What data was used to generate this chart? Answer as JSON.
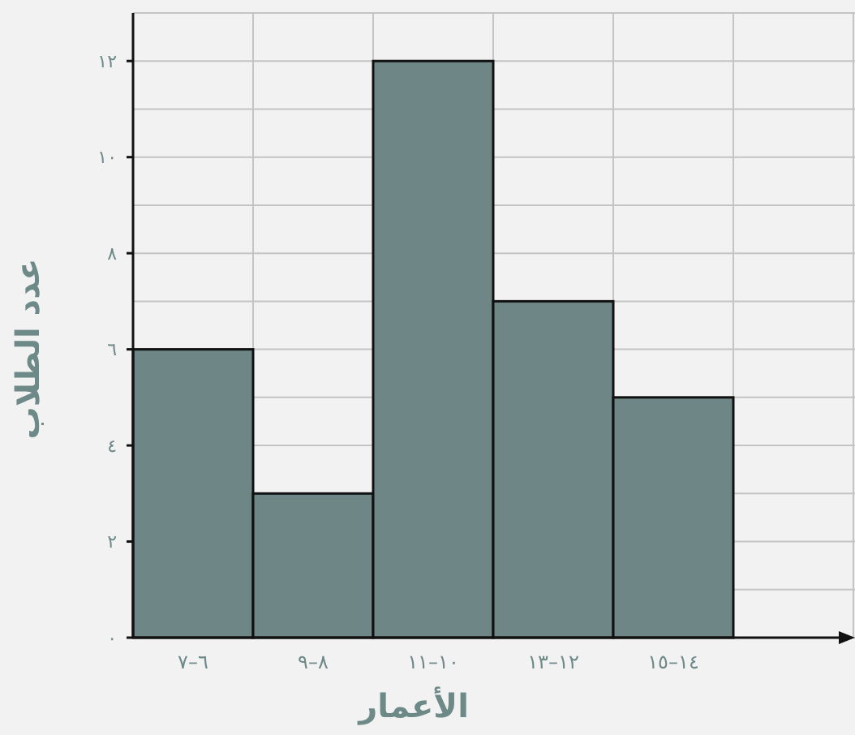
{
  "chart_data": {
    "type": "bar",
    "xlabel": "الأعمار",
    "ylabel": "عدد الطلاب",
    "categories": [
      "٦–٧",
      "٨–٩",
      "١٠–١١",
      "١٢–١٣",
      "١٤–١٥",
      null
    ],
    "values": [
      6,
      3,
      12,
      7,
      5,
      null
    ],
    "color": "#6e8786",
    "ylim": [
      0,
      13
    ],
    "yticks": [
      {
        "value": 0,
        "label": "٠"
      },
      {
        "value": 1,
        "label": null
      },
      {
        "value": 2,
        "label": "٢"
      },
      {
        "value": 3,
        "label": null
      },
      {
        "value": 4,
        "label": "٤"
      },
      {
        "value": 5,
        "label": null
      },
      {
        "value": 6,
        "label": "٦"
      },
      {
        "value": 7,
        "label": null
      },
      {
        "value": 8,
        "label": "٨"
      },
      {
        "value": 9,
        "label": null
      },
      {
        "value": 10,
        "label": "١٠"
      },
      {
        "value": 11,
        "label": null
      },
      {
        "value": 12,
        "label": "١٢"
      },
      {
        "value": 13,
        "label": null
      }
    ],
    "grid": true
  }
}
